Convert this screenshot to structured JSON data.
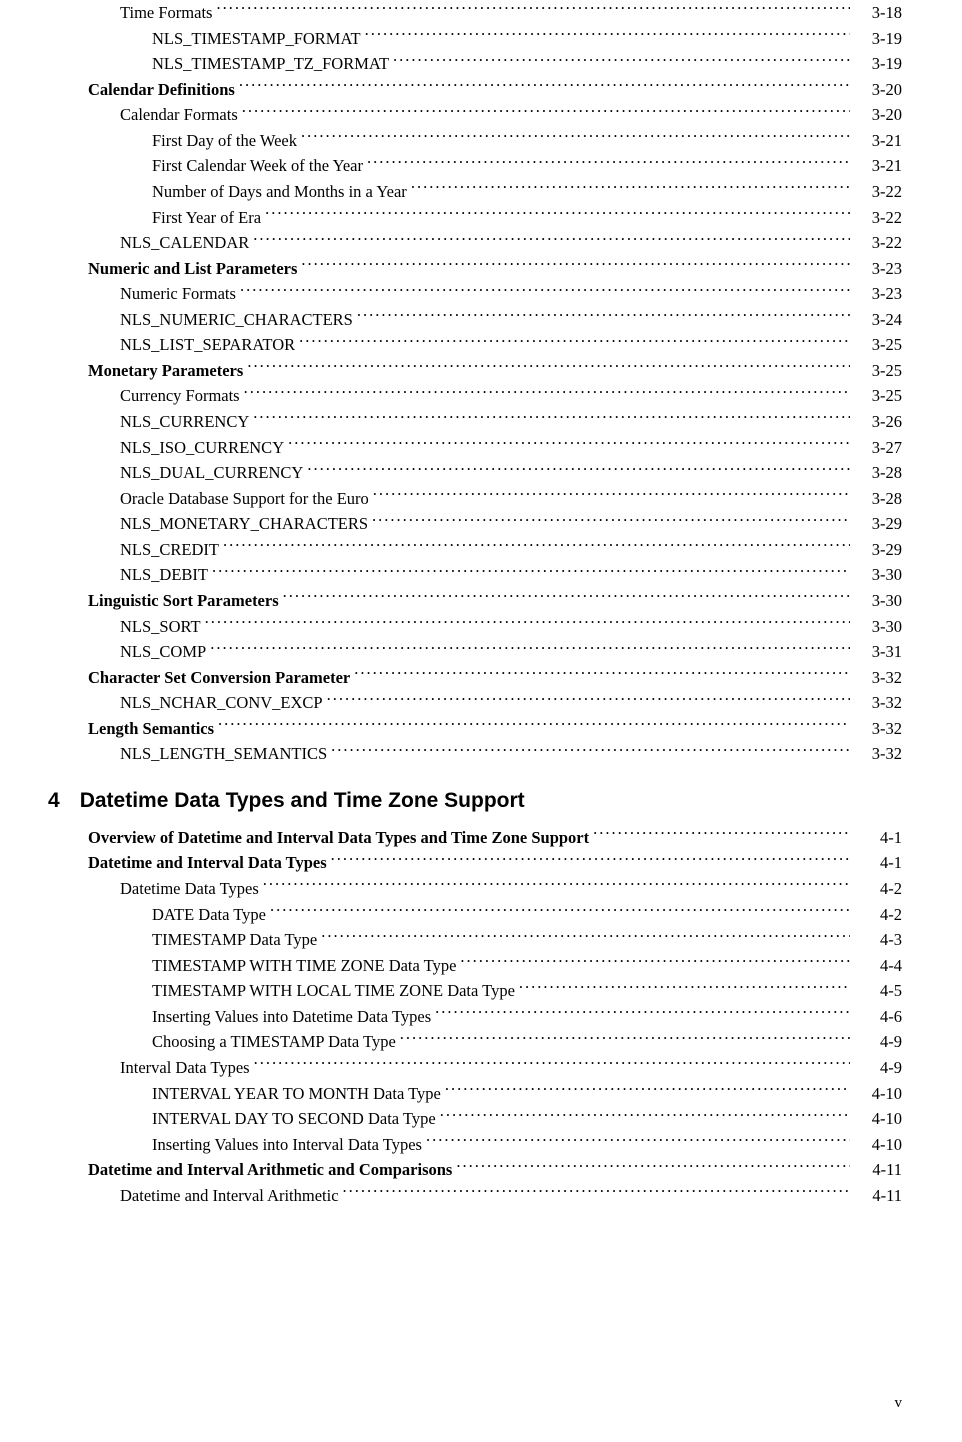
{
  "entries": [
    {
      "label": "Time Formats",
      "page": "3-18",
      "indent": 2,
      "bold": false
    },
    {
      "label": "NLS_TIMESTAMP_FORMAT",
      "page": "3-19",
      "indent": 3,
      "bold": false
    },
    {
      "label": "NLS_TIMESTAMP_TZ_FORMAT",
      "page": "3-19",
      "indent": 3,
      "bold": false
    },
    {
      "label": "Calendar Definitions",
      "page": "3-20",
      "indent": 1,
      "bold": true
    },
    {
      "label": "Calendar Formats",
      "page": "3-20",
      "indent": 2,
      "bold": false
    },
    {
      "label": "First Day of the Week",
      "page": "3-21",
      "indent": 3,
      "bold": false
    },
    {
      "label": "First Calendar Week of the Year",
      "page": "3-21",
      "indent": 3,
      "bold": false
    },
    {
      "label": "Number of Days and Months in a Year",
      "page": "3-22",
      "indent": 3,
      "bold": false
    },
    {
      "label": "First Year of Era",
      "page": "3-22",
      "indent": 3,
      "bold": false
    },
    {
      "label": "NLS_CALENDAR",
      "page": "3-22",
      "indent": 2,
      "bold": false
    },
    {
      "label": "Numeric and List Parameters",
      "page": "3-23",
      "indent": 1,
      "bold": true
    },
    {
      "label": "Numeric Formats",
      "page": "3-23",
      "indent": 2,
      "bold": false
    },
    {
      "label": "NLS_NUMERIC_CHARACTERS",
      "page": "3-24",
      "indent": 2,
      "bold": false
    },
    {
      "label": "NLS_LIST_SEPARATOR",
      "page": "3-25",
      "indent": 2,
      "bold": false
    },
    {
      "label": "Monetary Parameters",
      "page": "3-25",
      "indent": 1,
      "bold": true
    },
    {
      "label": "Currency Formats",
      "page": "3-25",
      "indent": 2,
      "bold": false
    },
    {
      "label": "NLS_CURRENCY",
      "page": "3-26",
      "indent": 2,
      "bold": false
    },
    {
      "label": "NLS_ISO_CURRENCY",
      "page": "3-27",
      "indent": 2,
      "bold": false
    },
    {
      "label": "NLS_DUAL_CURRENCY",
      "page": "3-28",
      "indent": 2,
      "bold": false
    },
    {
      "label": "Oracle Database Support for the Euro",
      "page": "3-28",
      "indent": 2,
      "bold": false
    },
    {
      "label": "NLS_MONETARY_CHARACTERS",
      "page": "3-29",
      "indent": 2,
      "bold": false
    },
    {
      "label": "NLS_CREDIT",
      "page": "3-29",
      "indent": 2,
      "bold": false
    },
    {
      "label": "NLS_DEBIT",
      "page": "3-30",
      "indent": 2,
      "bold": false
    },
    {
      "label": "Linguistic Sort Parameters",
      "page": "3-30",
      "indent": 1,
      "bold": true
    },
    {
      "label": "NLS_SORT",
      "page": "3-30",
      "indent": 2,
      "bold": false
    },
    {
      "label": "NLS_COMP",
      "page": "3-31",
      "indent": 2,
      "bold": false
    },
    {
      "label": "Character Set Conversion Parameter",
      "page": "3-32",
      "indent": 1,
      "bold": true
    },
    {
      "label": "NLS_NCHAR_CONV_EXCP",
      "page": "3-32",
      "indent": 2,
      "bold": false
    },
    {
      "label": "Length Semantics",
      "page": "3-32",
      "indent": 1,
      "bold": true
    },
    {
      "label": "NLS_LENGTH_SEMANTICS",
      "page": "3-32",
      "indent": 2,
      "bold": false
    }
  ],
  "chapter": {
    "number": "4",
    "title": "Datetime Data Types and Time Zone Support"
  },
  "entries2": [
    {
      "label": "Overview of Datetime and Interval Data Types and Time Zone Support",
      "page": "4-1",
      "indent": 1,
      "bold": true
    },
    {
      "label": "Datetime and Interval Data Types",
      "page": "4-1",
      "indent": 1,
      "bold": true
    },
    {
      "label": "Datetime Data Types",
      "page": "4-2",
      "indent": 2,
      "bold": false
    },
    {
      "label": "DATE Data Type",
      "page": "4-2",
      "indent": 3,
      "bold": false
    },
    {
      "label": "TIMESTAMP Data Type",
      "page": "4-3",
      "indent": 3,
      "bold": false
    },
    {
      "label": "TIMESTAMP WITH TIME ZONE Data Type",
      "page": "4-4",
      "indent": 3,
      "bold": false
    },
    {
      "label": "TIMESTAMP WITH LOCAL TIME ZONE Data Type",
      "page": "4-5",
      "indent": 3,
      "bold": false
    },
    {
      "label": "Inserting Values into Datetime Data Types",
      "page": "4-6",
      "indent": 3,
      "bold": false
    },
    {
      "label": "Choosing a TIMESTAMP Data Type",
      "page": "4-9",
      "indent": 3,
      "bold": false
    },
    {
      "label": "Interval Data Types",
      "page": "4-9",
      "indent": 2,
      "bold": false
    },
    {
      "label": "INTERVAL YEAR TO MONTH Data Type",
      "page": "4-10",
      "indent": 3,
      "bold": false
    },
    {
      "label": "INTERVAL DAY TO SECOND Data Type",
      "page": "4-10",
      "indent": 3,
      "bold": false
    },
    {
      "label": "Inserting Values into Interval Data Types",
      "page": "4-10",
      "indent": 3,
      "bold": false
    },
    {
      "label": "Datetime and Interval Arithmetic and Comparisons",
      "page": "4-11",
      "indent": 1,
      "bold": true
    },
    {
      "label": "Datetime and Interval Arithmetic",
      "page": "4-11",
      "indent": 2,
      "bold": false
    }
  ],
  "footer": {
    "page": "v"
  }
}
